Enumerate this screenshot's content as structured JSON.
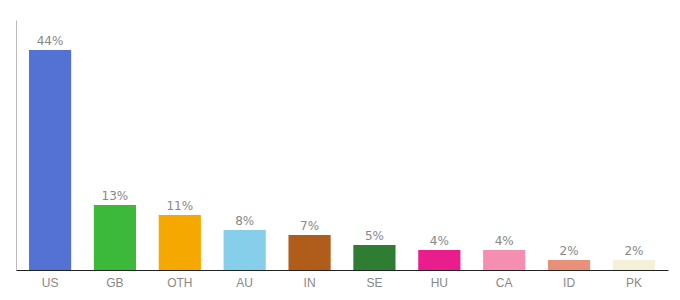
{
  "chart_data": {
    "type": "bar",
    "categories": [
      "US",
      "GB",
      "OTH",
      "AU",
      "IN",
      "SE",
      "HU",
      "CA",
      "ID",
      "PK"
    ],
    "values": [
      44,
      13,
      11,
      8,
      7,
      5,
      4,
      4,
      2,
      2
    ],
    "value_labels": [
      "44%",
      "13%",
      "11%",
      "8%",
      "7%",
      "5%",
      "4%",
      "4%",
      "2%",
      "2%"
    ],
    "colors": [
      "#5472d3",
      "#3cb83b",
      "#f5a800",
      "#87ceeb",
      "#b05c1a",
      "#2e7d32",
      "#e91e8c",
      "#f48fb1",
      "#e8907a",
      "#f5f0d8"
    ],
    "ylim": [
      0,
      50
    ],
    "data_labels": true,
    "tick_labels": "x"
  }
}
